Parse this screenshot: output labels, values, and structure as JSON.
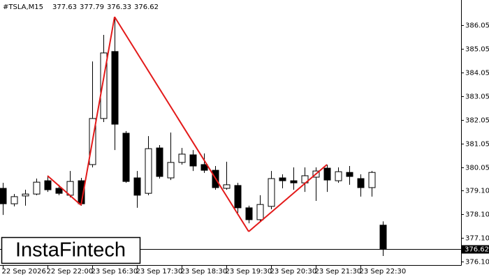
{
  "chart_data": {
    "type": "candlestick",
    "symbol": "#TSLA,M15",
    "watermark": "InstaFintech",
    "categories": [
      "22 Sep 2026",
      null,
      null,
      null,
      "22 Sep 22:00",
      null,
      null,
      null,
      "23 Sep 16:30",
      null,
      null,
      null,
      "23 Sep 17:30",
      null,
      null,
      null,
      "23 Sep 18:30",
      null,
      null,
      null,
      "23 Sep 19:30",
      null,
      null,
      null,
      "23 Sep 20:30",
      null,
      null,
      null,
      "23 Sep 21:30",
      null,
      null,
      null,
      "23 Sep 22:30",
      null,
      null
    ],
    "open": [
      379.18,
      378.53,
      378.86,
      378.94,
      379.5,
      379.18,
      378.89,
      379.5,
      380.18,
      382.12,
      384.94,
      381.5,
      379.62,
      378.97,
      380.88,
      379.62,
      380.27,
      380.59,
      380.18,
      379.94,
      379.18,
      379.3,
      378.36,
      377.86,
      378.42,
      379.62,
      379.5,
      379.41,
      379.65,
      380.03,
      379.5,
      379.85,
      379.59,
      379.21,
      377.63
    ],
    "high": [
      379.41,
      378.94,
      379.12,
      379.59,
      379.71,
      379.33,
      379.91,
      379.62,
      384.52,
      385.64,
      386.37,
      381.59,
      379.91,
      381.38,
      381.0,
      381.53,
      380.88,
      380.79,
      380.65,
      380.12,
      380.3,
      379.41,
      378.45,
      378.89,
      379.91,
      379.77,
      380.06,
      380.06,
      380.06,
      380.18,
      380.06,
      380.12,
      379.77,
      379.91,
      377.79
    ],
    "low": [
      378.06,
      378.42,
      378.45,
      378.89,
      379.03,
      378.89,
      378.8,
      378.45,
      380.06,
      381.97,
      380.79,
      379.41,
      378.36,
      378.89,
      379.59,
      379.53,
      380.18,
      379.91,
      379.83,
      379.12,
      379.12,
      378.15,
      377.71,
      377.77,
      378.3,
      379.18,
      379.12,
      379.03,
      378.65,
      379.03,
      379.41,
      379.33,
      378.83,
      378.83,
      376.33
    ],
    "close": [
      378.53,
      378.83,
      378.94,
      379.44,
      379.12,
      378.97,
      379.47,
      378.53,
      382.12,
      384.88,
      381.88,
      379.47,
      378.89,
      380.85,
      379.68,
      380.27,
      380.62,
      380.12,
      379.94,
      379.21,
      379.33,
      378.36,
      377.86,
      378.5,
      379.59,
      379.5,
      379.41,
      379.71,
      379.91,
      379.53,
      379.88,
      379.68,
      379.21,
      379.85,
      376.62
    ],
    "pattern": {
      "color": "#e31a1a",
      "values": [
        null,
        null,
        null,
        null,
        379.71,
        null,
        null,
        378.47,
        null,
        null,
        386.4,
        null,
        null,
        null,
        null,
        null,
        null,
        null,
        null,
        null,
        null,
        null,
        377.36,
        null,
        null,
        null,
        null,
        null,
        null,
        380.18,
        null,
        null,
        null,
        null,
        null
      ]
    },
    "ylim": [
      375.95,
      387.05
    ],
    "yticks": [
      386.05,
      385.05,
      384.05,
      383.05,
      382.05,
      381.05,
      380.05,
      {
        "value": 379.1,
        "label": "379.10"
      },
      {
        "value": 378.1,
        "label": "378.10"
      },
      {
        "value": 377.1,
        "label": "377.10"
      },
      {
        "value": 376.1,
        "label": "376.10"
      }
    ]
  }
}
